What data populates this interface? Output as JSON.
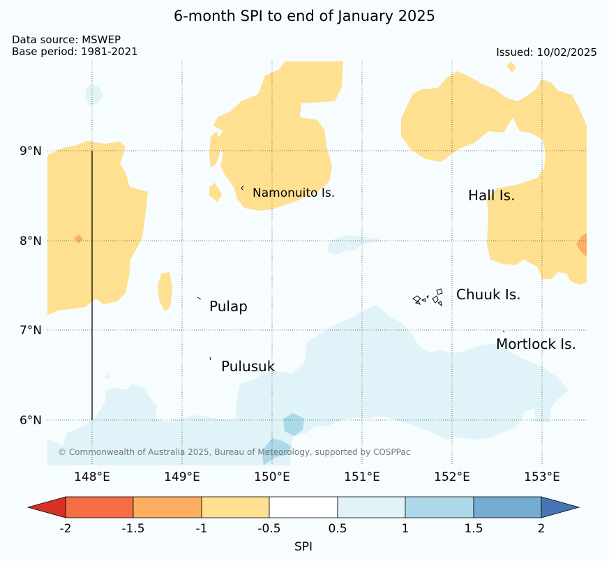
{
  "title": "6-month SPI to end of January 2025",
  "data_source": "Data source: MSWEP",
  "base_period": "Base period: 1981-2021",
  "issued": "Issued: 10/02/2025",
  "copyright": "© Commonwealth of Australia 2025, Bureau of Meteorology, supported by COSPPac",
  "lat_labels": [
    "9°N",
    "8°N",
    "7°N",
    "6°N"
  ],
  "lon_labels": [
    "148°E",
    "149°E",
    "150°E",
    "151°E",
    "152°E",
    "153°E"
  ],
  "places": [
    "Namonuito Is.",
    "Hall Is.",
    "Pulap",
    "Chuuk Is.",
    "Pulusuk",
    "Mortlock Is."
  ],
  "colorbar": {
    "label": "SPI",
    "ticks": [
      "-2",
      "-1.5",
      "-1",
      "-0.5",
      "0.5",
      "1",
      "1.5",
      "2"
    ],
    "colors": {
      "below_min": "#d73027",
      "m2_m15": "#f46d43",
      "m15_m1": "#fdae61",
      "m1_m05": "#fee090",
      "m05_05": "#ffffff",
      "p05_1": "#e0f3f8",
      "p1_15": "#abd9e9",
      "p15_2": "#74add1",
      "above_max": "#4575b4"
    }
  },
  "map_colors": {
    "dry": "#fee090",
    "drier": "#fdae61",
    "wet": "#e0f3f8",
    "wetter": "#abd9e9",
    "neutral": "#f7fcfe"
  }
}
